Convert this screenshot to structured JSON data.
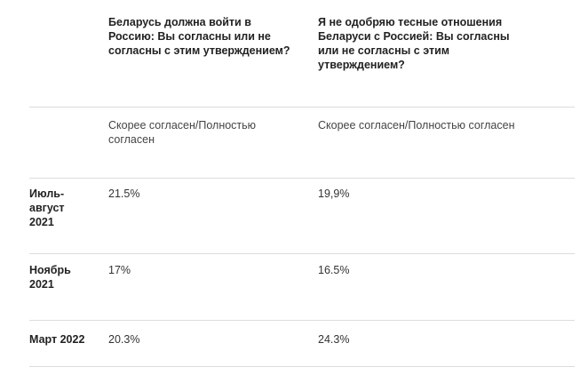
{
  "header": {
    "col1": "",
    "col2": "Беларусь должна войти в Россию: Вы согласны или не согласны с этим утверждением?",
    "col3": "Я не одобряю тесные отношения Беларуси с Россией: Вы согласны или не согласны с этим утверждением?"
  },
  "subheader": {
    "col1": "",
    "col2": "Скорее согласен/Полностью согласен",
    "col3": "Скорее согласен/Полностью согласен"
  },
  "rows": [
    {
      "period": "Июль-август 2021",
      "q1": "21.5%",
      "q2": "19,9%"
    },
    {
      "period": "Ноябрь 2021",
      "q1": "17%",
      "q2": "16.5%"
    },
    {
      "period": "Март 2022",
      "q1": "20.3%",
      "q2": "24.3%"
    }
  ]
}
